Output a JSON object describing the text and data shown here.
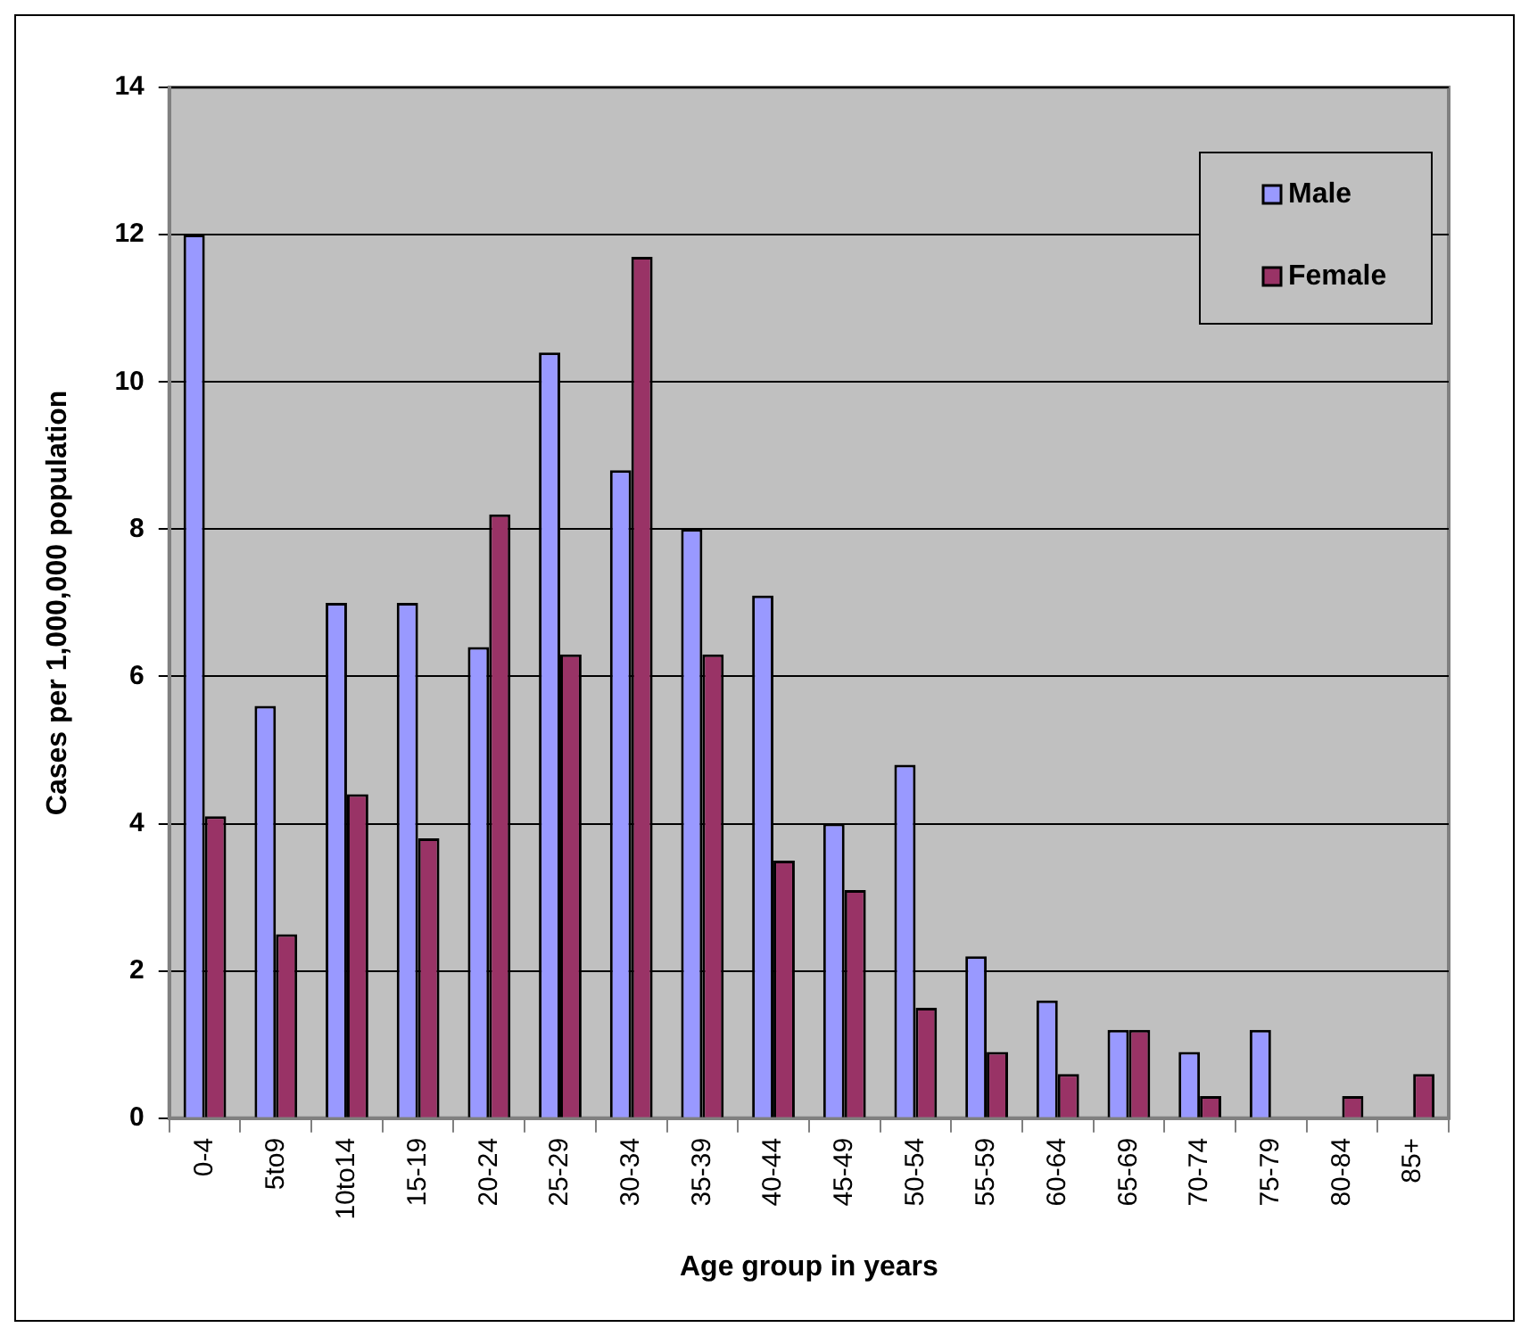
{
  "chart_data": {
    "type": "bar",
    "xlabel": "Age group in years",
    "ylabel": "Cases per 1,000,000 population",
    "categories": [
      "0-4",
      "5to9",
      "10to14",
      "15-19",
      "20-24",
      "25-29",
      "30-34",
      "35-39",
      "40-44",
      "45-49",
      "50-54",
      "55-59",
      "60-64",
      "65-69",
      "70-74",
      "75-79",
      "80-84",
      "85+"
    ],
    "series": [
      {
        "name": "Male",
        "color": "#9999ff",
        "values": [
          12.0,
          5.6,
          7.0,
          7.0,
          6.4,
          10.4,
          8.8,
          8.0,
          7.1,
          4.0,
          4.8,
          2.2,
          1.6,
          1.2,
          0.9,
          1.2,
          0,
          0
        ]
      },
      {
        "name": "Female",
        "color": "#993366",
        "values": [
          4.1,
          2.5,
          4.4,
          3.8,
          8.2,
          6.3,
          11.7,
          6.3,
          3.5,
          3.1,
          1.5,
          0.9,
          0.6,
          1.2,
          0.3,
          0,
          0.3,
          0.6
        ]
      }
    ],
    "ylim": [
      0,
      14
    ],
    "yticks": [
      0,
      2,
      4,
      6,
      8,
      10,
      12,
      14
    ],
    "grid": "y",
    "legend": "top right"
  }
}
